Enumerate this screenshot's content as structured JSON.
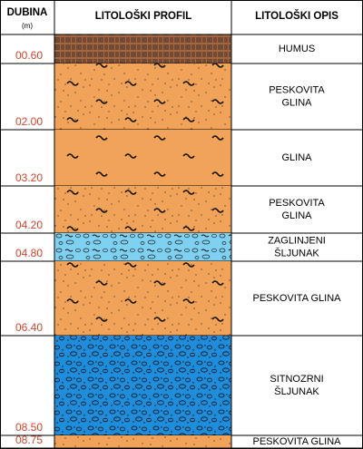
{
  "header": {
    "depth": "DUBINA",
    "depth_unit": "(m)",
    "profile": "LITOLOŠKI PROFIL",
    "description": "LITOLOŠKI OPIS"
  },
  "layers": [
    {
      "depth": "00.60",
      "description": [
        "HUMUS"
      ]
    },
    {
      "depth": "02.00",
      "description": [
        "PESKOVITA",
        "GLINA"
      ]
    },
    {
      "depth": "03.20",
      "description": [
        "GLINA"
      ]
    },
    {
      "depth": "04.20",
      "description": [
        "PESKOVITA",
        "GLINA"
      ]
    },
    {
      "depth": "04.80",
      "description": [
        "ZAGLINJENI",
        "ŠLJUNAK"
      ]
    },
    {
      "depth": "06.40",
      "description": [
        "PESKOVITA GLINA"
      ]
    },
    {
      "depth": "08.50",
      "description": [
        "SITNOZRNI",
        "ŠLJUNAK"
      ]
    },
    {
      "depth": "08.75",
      "description": [
        "PESKOVITA GLINA"
      ]
    }
  ]
}
